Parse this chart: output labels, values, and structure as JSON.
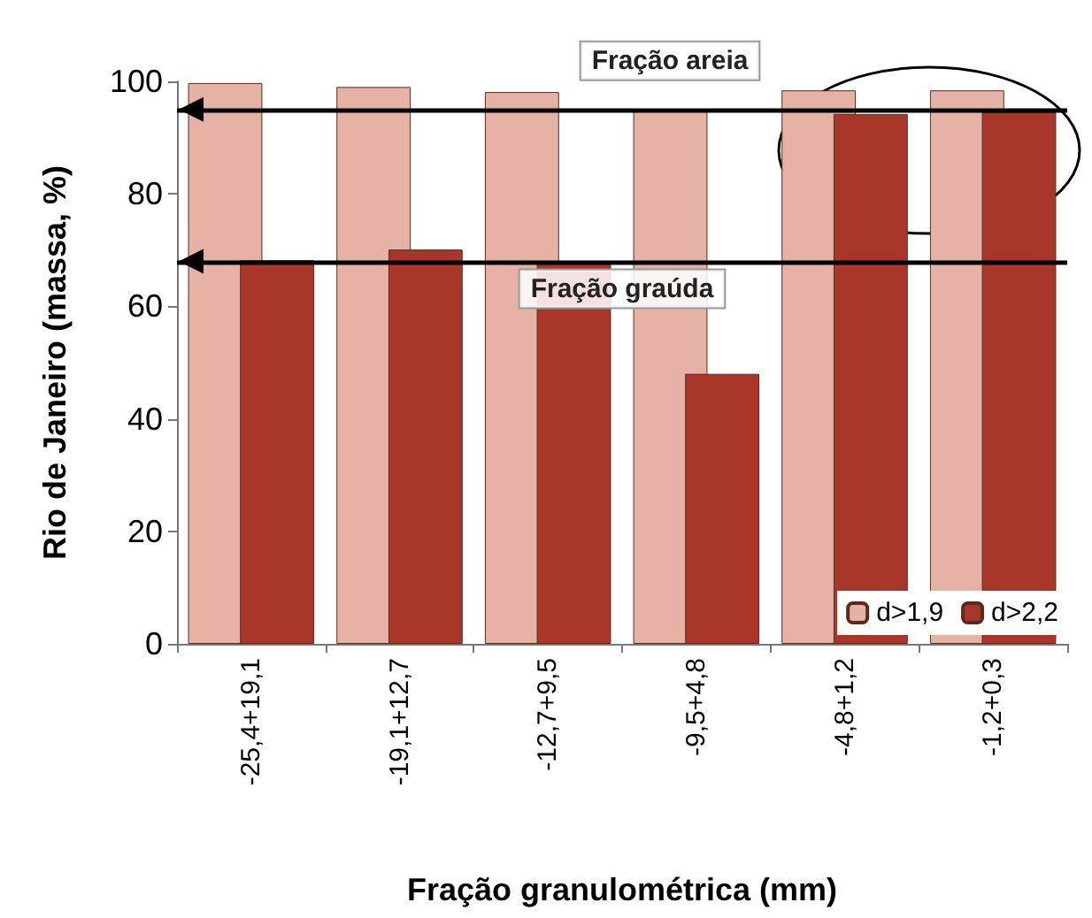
{
  "chart_data": {
    "type": "bar",
    "xlabel": "Fração granulométrica (mm)",
    "ylabel": "Rio de Janeiro (massa, %)",
    "categories": [
      "-25,4+19,1",
      "-19,1+12,7",
      "-12,7+9,5",
      "-9,5+4,8",
      "-4,8+1,2",
      "-1,2+0,3"
    ],
    "series": [
      {
        "name": "d>1,9",
        "color": "#e6b2a6",
        "values": [
          99.7,
          99,
          98.1,
          94.8,
          98.4,
          98.4
        ]
      },
      {
        "name": "d>2,2",
        "color": "#a8372a",
        "values": [
          68.2,
          70.1,
          68,
          48,
          94.2,
          94.5
        ]
      }
    ],
    "ylim": [
      0,
      100
    ],
    "yticks": [
      0,
      20,
      40,
      60,
      80,
      100
    ],
    "grid": false,
    "legend": "bottom right",
    "ref_lines": [
      {
        "axis": "y",
        "value": 95,
        "label": "Fração areia",
        "color": "#000000"
      },
      {
        "axis": "y",
        "value": 68,
        "label": "Fração graúda",
        "color": "#000000"
      }
    ]
  }
}
